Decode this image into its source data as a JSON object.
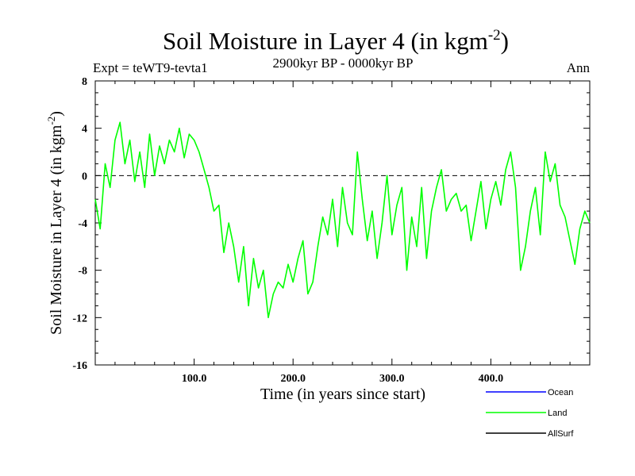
{
  "chart_data": {
    "type": "line",
    "title": "Soil Moisture in Layer 4 (in kgm",
    "title_sup": "-2",
    "title_close": ")",
    "subtitle": "2900kyr BP - 0000kyr BP",
    "expt_label": "Expt = teWT9-tevta1",
    "season_label": "Ann",
    "xlabel": "Time (in years since start)",
    "ylabel": "Soil Moisture in Layer 4 (in kgm",
    "ylabel_sup": "-2",
    "ylabel_close": ")",
    "xlim": [
      0,
      500
    ],
    "ylim": [
      -16,
      8
    ],
    "x_ticks": [
      100,
      200,
      300,
      400
    ],
    "x_tick_labels": [
      "100.0",
      "200.0",
      "300.0",
      "400.0"
    ],
    "y_ticks": [
      -16,
      -12,
      -8,
      -4,
      0,
      4,
      8
    ],
    "y_tick_labels": [
      "-16",
      "-12",
      "-8",
      "-4",
      "0",
      "4",
      "8"
    ],
    "zero_line": 0,
    "legend": [
      {
        "name": "Ocean",
        "color": "#0000ff"
      },
      {
        "name": "Land",
        "color": "#00ff00"
      },
      {
        "name": "AllSurf",
        "color": "#000000"
      }
    ],
    "series": [
      {
        "name": "Land",
        "color": "#00ff00",
        "x": [
          0,
          5,
          10,
          15,
          20,
          25,
          30,
          35,
          40,
          45,
          50,
          55,
          60,
          65,
          70,
          75,
          80,
          85,
          90,
          95,
          100,
          105,
          110,
          115,
          120,
          125,
          130,
          135,
          140,
          145,
          150,
          155,
          160,
          165,
          170,
          175,
          180,
          185,
          190,
          195,
          200,
          205,
          210,
          215,
          220,
          225,
          230,
          235,
          240,
          245,
          250,
          255,
          260,
          265,
          270,
          275,
          280,
          285,
          290,
          295,
          300,
          305,
          310,
          315,
          320,
          325,
          330,
          335,
          340,
          345,
          350,
          355,
          360,
          365,
          370,
          375,
          380,
          385,
          390,
          395,
          400,
          405,
          410,
          415,
          420,
          425,
          430,
          435,
          440,
          445,
          450,
          455,
          460,
          465,
          470,
          475,
          480,
          485,
          490,
          495,
          500
        ],
        "values": [
          -2,
          -4.5,
          1,
          -1,
          3,
          4.5,
          1,
          3,
          -0.5,
          2,
          -1,
          3.5,
          0,
          2.5,
          1,
          3,
          2,
          4,
          1.5,
          3.5,
          3,
          2,
          0.5,
          -1,
          -3,
          -2.5,
          -6.5,
          -4,
          -6,
          -9,
          -6,
          -11,
          -7,
          -9.5,
          -8,
          -12,
          -10,
          -9,
          -9.5,
          -7.5,
          -9,
          -7,
          -5.5,
          -10,
          -9,
          -6,
          -3.5,
          -5,
          -2,
          -6,
          -1,
          -4,
          -5,
          2,
          -2,
          -5.5,
          -3,
          -7,
          -4,
          0,
          -5,
          -2.5,
          -1,
          -8,
          -3.5,
          -6,
          -1,
          -7,
          -3,
          -1,
          0.5,
          -3,
          -2,
          -1.5,
          -3,
          -2.5,
          -5.5,
          -3,
          -0.5,
          -4.5,
          -2,
          -0.5,
          -2.5,
          0.5,
          2,
          -1,
          -8,
          -6,
          -3,
          -1,
          -5,
          2,
          -0.5,
          1,
          -2.5,
          -3.5,
          -5.5,
          -7.5,
          -4.5,
          -3,
          -4
        ]
      }
    ]
  }
}
